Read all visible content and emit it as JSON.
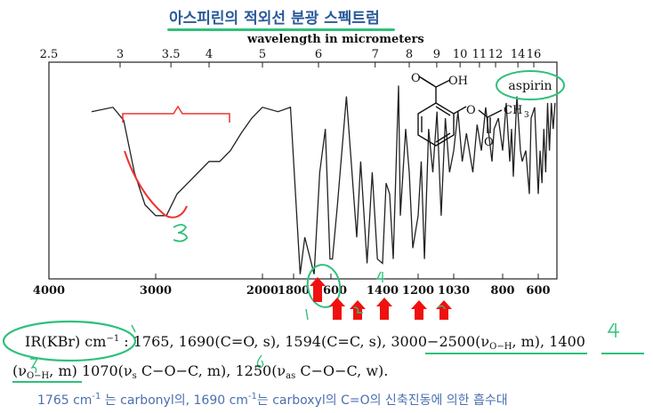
{
  "title": "아스피린의 적외선 분광 스펙트럼",
  "chart_data": {
    "type": "line",
    "top_axis_label": "wavelength in micrometers",
    "top_ticks": [
      "2.5",
      "3",
      "3.5",
      "4",
      "5",
      "6",
      "7",
      "8",
      "9",
      "10",
      "11",
      "12",
      "14",
      "16"
    ],
    "bottom_ticks": [
      "4000",
      "3000",
      "2000",
      "1800",
      "1600",
      "1400",
      "1200",
      "1030",
      "800",
      "600"
    ],
    "xlim": [
      4000,
      400
    ],
    "compound_label": "aspirin",
    "structure_labels": {
      "acid": "OH",
      "methyl": "CH",
      "methyl_sub": "3"
    },
    "series": [
      {
        "x": [
          3600,
          3400,
          3300,
          3200,
          3100,
          3000,
          2900,
          2800,
          2700,
          2600,
          2500,
          2400,
          2300,
          2200,
          2100,
          2000,
          1900,
          1820,
          1765,
          1740,
          1690,
          1660,
          1630,
          1605,
          1594,
          1575,
          1540,
          1500,
          1485,
          1460,
          1440,
          1420,
          1400,
          1380,
          1360,
          1340,
          1310,
          1300,
          1270,
          1250,
          1230,
          1200,
          1185,
          1170,
          1150,
          1130,
          1110,
          1090,
          1070,
          1050,
          1030,
          1010,
          990,
          970,
          940,
          920,
          900,
          880,
          850,
          840,
          820,
          800,
          780,
          760,
          750,
          740,
          720,
          700,
          690,
          670,
          650,
          640,
          620,
          600,
          580,
          560,
          540,
          520,
          500,
          480,
          460,
          440,
          420
        ],
        "y": [
          78,
          80,
          74,
          50,
          35,
          30,
          30,
          40,
          45,
          50,
          55,
          55,
          60,
          68,
          75,
          80,
          78,
          80,
          3,
          20,
          3,
          50,
          70,
          10,
          10,
          35,
          85,
          20,
          55,
          8,
          50,
          10,
          8,
          45,
          40,
          10,
          90,
          30,
          70,
          50,
          15,
          30,
          55,
          10,
          70,
          50,
          78,
          30,
          75,
          50,
          60,
          78,
          55,
          68,
          50,
          72,
          60,
          80,
          55,
          70,
          75,
          60,
          82,
          55,
          70,
          48,
          85,
          60,
          55,
          60,
          40,
          75,
          80,
          40,
          60,
          45,
          70,
          50,
          82,
          60,
          82,
          70,
          82
        ]
      }
    ],
    "annotation_numbers": [
      "1",
      "2",
      "3",
      "4",
      "5",
      "6",
      "3"
    ]
  },
  "ir_line1": "IR(KBr) cm",
  "ir_sup": "−1",
  "ir_line1_rest": " : 1765,  1690(C=O,  s),  1594(C=C,  s),  ",
  "ir_range": "3000−2500",
  "ir_nu_open": "(ν",
  "ir_oh": "O−H",
  "ir_m_close": ",  m),  ",
  "ir_1400": "1400",
  "ir_line2_a": "(ν",
  "ir_line2_oh": "O−H",
  "ir_line2_b": ",  m)  1070(ν",
  "ir_line2_s": "s",
  "ir_line2_c": " C−O−C,  m),  ",
  "ir_line2_d": "1250(ν",
  "ir_line2_as": "as",
  "ir_line2_e": " C−O−C,  w).",
  "note_a": "1765 cm",
  "note_sup1": "-1",
  "note_b": " 는 carbonyl의, 1690 cm",
  "note_sup2": "-1",
  "note_c": "는 carboxyl의 C=O의 신축진동에 의한 흡수대"
}
